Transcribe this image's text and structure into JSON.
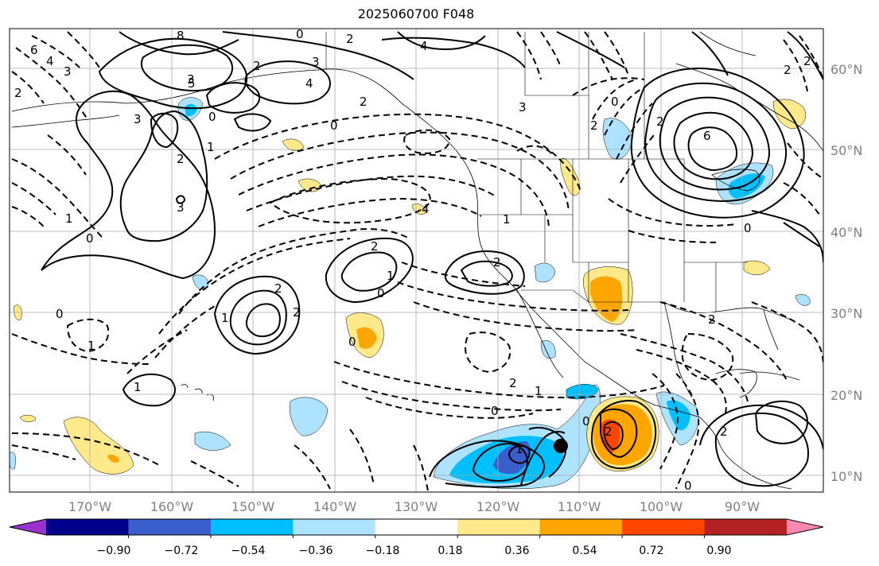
{
  "title": "2025060700 F048",
  "map": {
    "lat_labels": [
      "60°N",
      "50°N",
      "40°N",
      "30°N",
      "20°N",
      "10°N"
    ],
    "lon_labels": [
      "170°W",
      "160°W",
      "150°W",
      "140°W",
      "130°W",
      "120°W",
      "110°W",
      "100°W",
      "90°W"
    ],
    "contour_labels": [
      "6",
      "4",
      "3",
      "8",
      "2",
      "0",
      "4",
      "2",
      "3",
      "3",
      "4",
      "2",
      "0",
      "5",
      "2",
      "3",
      "2",
      "0",
      "3",
      "2",
      "1",
      "2",
      "6",
      "3",
      "2",
      "2",
      "1",
      "0",
      "0",
      "1",
      "2",
      "0",
      "0",
      "2",
      "2",
      "0",
      "1",
      "1",
      "2",
      "2",
      "0",
      "1",
      "2",
      "1",
      "0",
      "1",
      "4",
      "1",
      "0",
      "2",
      "2",
      "0"
    ],
    "positive_color": "#000000",
    "land_outline_color": "#000000",
    "grid_color": "#a9a9a9"
  },
  "colorbar": {
    "colors": [
      "#9932cc",
      "#00008b",
      "#3a5fcd",
      "#00bfff",
      "#aee3ff",
      "#ffffff",
      "#ffe98a",
      "#ffa500",
      "#ff4500",
      "#b22222",
      "#ff88b0"
    ],
    "tick_labels": [
      "−0.90",
      "−0.72",
      "−0.54",
      "−0.36",
      "−0.18",
      "0.18",
      "0.36",
      "0.54",
      "0.72",
      "0.90"
    ],
    "vmin": -1.08,
    "vmax": 1.08
  }
}
